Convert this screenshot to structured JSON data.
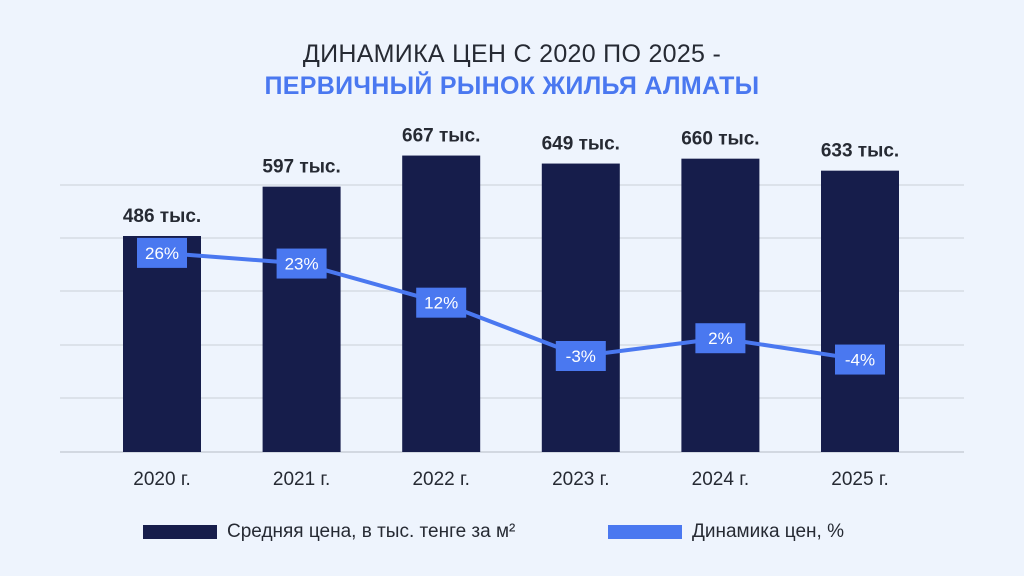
{
  "title": {
    "line1": "ДИНАМИКА ЦЕН С 2020 ПО 2025 -",
    "line2": "ПЕРВИЧНЫЙ РЫНОК ЖИЛЬЯ АЛМАТЫ"
  },
  "colors": {
    "bar": "#161d4b",
    "line": "#4a78f0",
    "title_accent": "#4a78f0",
    "grid": "#c9cfd8",
    "background": "#eef4fd"
  },
  "chart_data": {
    "type": "bar",
    "categories": [
      "2020 г.",
      "2021 г.",
      "2022 г.",
      "2023 г.",
      "2024 г.",
      "2025 г."
    ],
    "series": [
      {
        "name": "Средняя цена, в тыс. тенге за м²",
        "type": "bar",
        "values": [
          486,
          597,
          667,
          649,
          660,
          633
        ],
        "labels": [
          "486 тыс.",
          "597 тыс.",
          "667 тыс.",
          "649 тыс.",
          "660 тыс.",
          "633 тыс."
        ]
      },
      {
        "name": "Динамика цен, %",
        "type": "line",
        "values": [
          26,
          23,
          12,
          -3,
          2,
          -4
        ],
        "labels": [
          "26%",
          "23%",
          "12%",
          "-3%",
          "2%",
          "-4%"
        ]
      }
    ],
    "ylim_bar": [
      0,
      720
    ],
    "ylim_line": [
      -30,
      60
    ],
    "grid": true,
    "legend_position": "bottom"
  }
}
